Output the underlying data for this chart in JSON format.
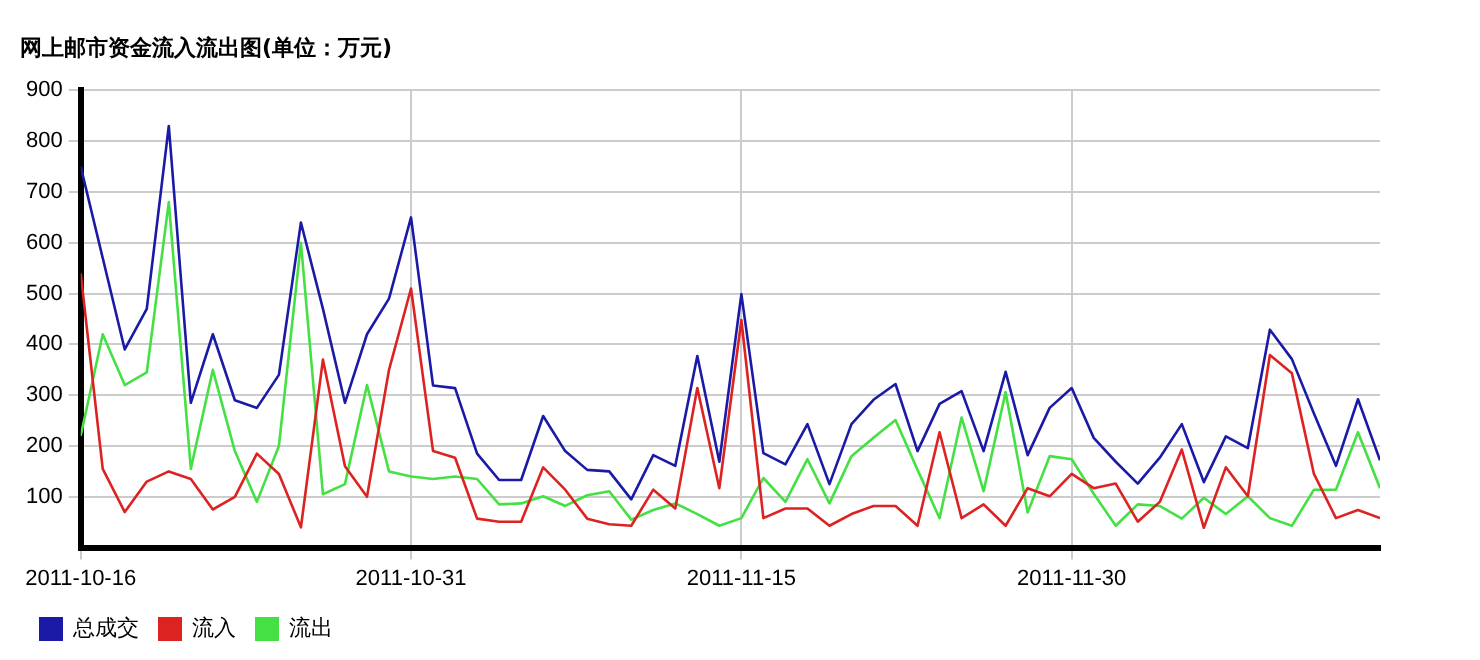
{
  "chart_data": {
    "type": "line",
    "title": "网上邮市资金流入流出图(单位：万元)",
    "x": [
      "2011-10-16",
      "2011-10-17",
      "2011-10-18",
      "2011-10-19",
      "2011-10-20",
      "2011-10-21",
      "2011-10-22",
      "2011-10-23",
      "2011-10-24",
      "2011-10-25",
      "2011-10-26",
      "2011-10-27",
      "2011-10-28",
      "2011-10-29",
      "2011-10-30",
      "2011-10-31",
      "2011-11-01",
      "2011-11-02",
      "2011-11-03",
      "2011-11-04",
      "2011-11-05",
      "2011-11-06",
      "2011-11-07",
      "2011-11-08",
      "2011-11-09",
      "2011-11-10",
      "2011-11-11",
      "2011-11-12",
      "2011-11-13",
      "2011-11-14",
      "2011-11-15",
      "2011-11-16",
      "2011-11-17",
      "2011-11-18",
      "2011-11-19",
      "2011-11-20",
      "2011-11-21",
      "2011-11-22",
      "2011-11-23",
      "2011-11-24",
      "2011-11-25",
      "2011-11-26",
      "2011-11-27",
      "2011-11-28",
      "2011-11-29",
      "2011-11-30",
      "2011-12-01",
      "2011-12-02",
      "2011-12-03",
      "2011-12-04",
      "2011-12-05",
      "2011-12-06",
      "2011-12-07",
      "2011-12-08",
      "2011-12-09",
      "2011-12-10",
      "2011-12-11",
      "2011-12-12",
      "2011-12-13",
      "2011-12-14"
    ],
    "series": [
      {
        "name": "总成交",
        "color": "#1a1aa6",
        "values": [
          750,
          570,
          390,
          470,
          830,
          285,
          420,
          290,
          275,
          340,
          640,
          470,
          285,
          420,
          490,
          650,
          319,
          314,
          185,
          133,
          133,
          259,
          190,
          153,
          150,
          95,
          182,
          161,
          377,
          169,
          499,
          186,
          164,
          243,
          125,
          243,
          291,
          322,
          190,
          283,
          308,
          190,
          346,
          182,
          275,
          314,
          216,
          169,
          126,
          177,
          243,
          129,
          219,
          196,
          429,
          371,
          264,
          161,
          292,
          172
        ]
      },
      {
        "name": "流入",
        "color": "#dd2222",
        "values": [
          540,
          155,
          70,
          130,
          150,
          135,
          75,
          100,
          185,
          145,
          40,
          370,
          160,
          100,
          350,
          510,
          190,
          177,
          57,
          51,
          51,
          158,
          114,
          57,
          46,
          43,
          114,
          77,
          314,
          117,
          448,
          58,
          77,
          77,
          43,
          66,
          82,
          82,
          43,
          227,
          58,
          85,
          43,
          117,
          101,
          145,
          117,
          126,
          51,
          90,
          193,
          39,
          158,
          101,
          379,
          343,
          145,
          58,
          74,
          58
        ]
      },
      {
        "name": "流出",
        "color": "#44e044",
        "values": [
          220,
          420,
          320,
          345,
          680,
          155,
          350,
          190,
          90,
          200,
          600,
          105,
          125,
          320,
          150,
          140,
          135,
          140,
          135,
          85,
          87,
          101,
          82,
          103,
          111,
          55,
          74,
          87,
          66,
          43,
          58,
          137,
          90,
          174,
          87,
          180,
          216,
          251,
          153,
          58,
          256,
          111,
          306,
          69,
          180,
          174,
          106,
          43,
          85,
          82,
          57,
          98,
          66,
          101,
          58,
          43,
          114,
          114,
          227,
          117
        ]
      }
    ],
    "xlim": [
      "2011-10-16",
      "2011-12-14"
    ],
    "xticks": [
      "2011-10-16",
      "2011-10-31",
      "2011-11-15",
      "2011-11-30"
    ],
    "ylim": [
      0,
      900
    ],
    "yticks": [
      100,
      200,
      300,
      400,
      500,
      600,
      700,
      800,
      900
    ],
    "grid": true,
    "legend": "bottom",
    "marker": "none",
    "line_style": "solid"
  }
}
